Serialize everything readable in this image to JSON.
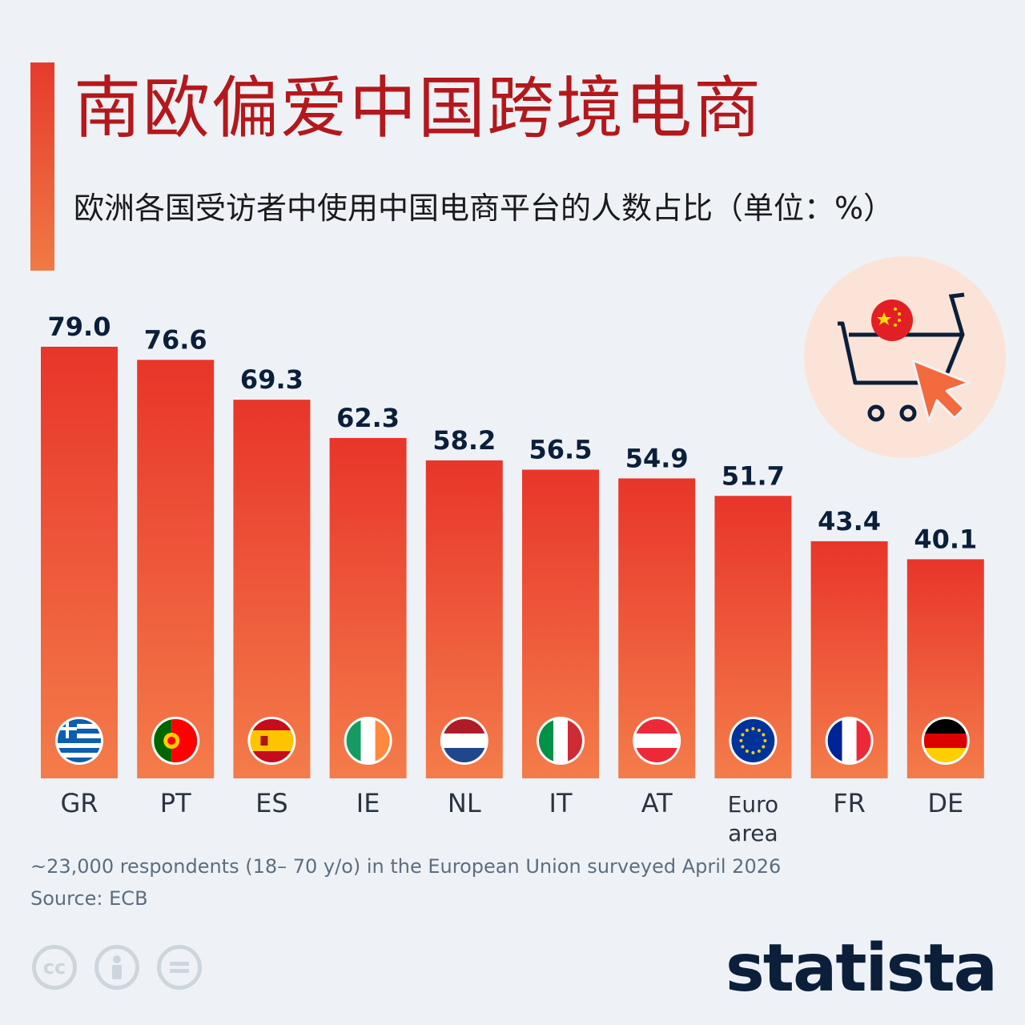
{
  "header": {
    "title": "南欧偏爱中国跨境电商",
    "subtitle": "欧洲各国受访者中使用中国电商平台的人数占比（单位：%）"
  },
  "chart_data": {
    "type": "bar",
    "categories": [
      "GR",
      "PT",
      "ES",
      "IE",
      "NL",
      "IT",
      "AT",
      "Euro area",
      "FR",
      "DE"
    ],
    "category_lines": [
      [
        "GR"
      ],
      [
        "PT"
      ],
      [
        "ES"
      ],
      [
        "IE"
      ],
      [
        "NL"
      ],
      [
        "IT"
      ],
      [
        "AT"
      ],
      [
        "Euro",
        "area"
      ],
      [
        "FR"
      ],
      [
        "DE"
      ]
    ],
    "values": [
      79.0,
      76.6,
      69.3,
      62.3,
      58.2,
      56.5,
      54.9,
      51.7,
      43.4,
      40.1
    ],
    "value_labels": [
      "79.0",
      "76.6",
      "69.3",
      "62.3",
      "58.2",
      "56.5",
      "54.9",
      "51.7",
      "43.4",
      "40.1"
    ],
    "flags": [
      "greece-flag-icon",
      "portugal-flag-icon",
      "spain-flag-icon",
      "ireland-flag-icon",
      "netherlands-flag-icon",
      "italy-flag-icon",
      "austria-flag-icon",
      "eu-flag-icon",
      "france-flag-icon",
      "germany-flag-icon"
    ],
    "ylim": [
      0,
      80
    ],
    "grid": false,
    "legend": "none",
    "colors": {
      "bar_top": "#e8352a",
      "bar_bottom": "#f47c4a",
      "value_text": "#0b1f3a",
      "category_text": "#2b3440"
    }
  },
  "footer": {
    "note": "~23,000 respondents (18– 70 y/o) in the European Union surveyed April 2026",
    "source": "Source: ECB",
    "brand": "statista"
  },
  "colors": {
    "background": "#eef2f6",
    "title": "#b3181c",
    "accent": "#e63a2c"
  },
  "icons": [
    "shopping-cart-icon",
    "china-flag-icon",
    "cursor-icon",
    "cc-icon",
    "attribution-icon",
    "no-derivatives-icon",
    "statista-logo-icon"
  ]
}
